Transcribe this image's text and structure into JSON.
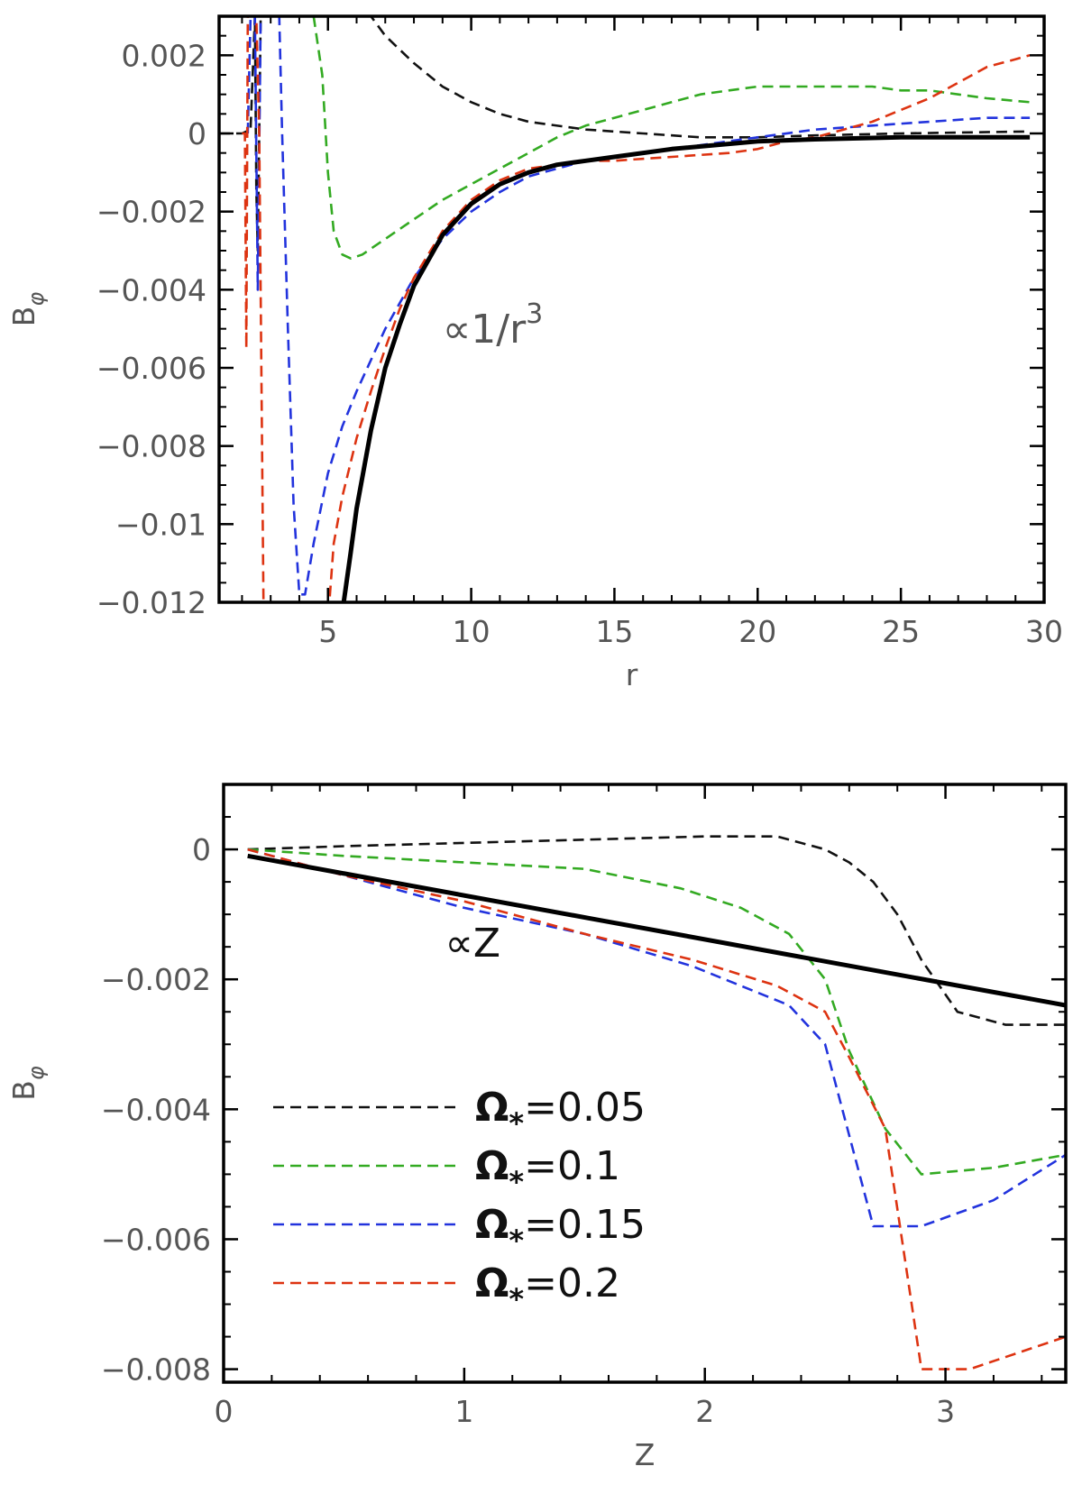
{
  "chart_data": [
    {
      "type": "line",
      "xlabel": "r",
      "ylabel_main": "B",
      "ylabel_sub": "φ",
      "xlim": [
        1.2,
        30
      ],
      "ylim": [
        -0.012,
        0.003
      ],
      "xticks": [
        5,
        10,
        15,
        20,
        25,
        30
      ],
      "xtick_labels": [
        "5",
        "10",
        "15",
        "20",
        "25",
        "30"
      ],
      "yticks": [
        0.002,
        0,
        -0.002,
        -0.004,
        -0.006,
        -0.008,
        -0.01,
        -0.012
      ],
      "ytick_labels": [
        "0.002",
        "0",
        "−0.002",
        "−0.004",
        "−0.006",
        "−0.008",
        "−0.01",
        "−0.012"
      ],
      "annotation": {
        "prefix": "∝1/r",
        "sup": "3",
        "x": 9.0,
        "y": -0.00535,
        "color": "#555555"
      },
      "series": [
        {
          "color": "#111111",
          "dash": "12,7",
          "points": [
            [
              1.2,
              0
            ],
            [
              2.0,
              0
            ],
            [
              2.3,
              0.0001
            ],
            [
              2.45,
              0.003
            ],
            [
              2.5,
              -0.0015
            ],
            [
              2.55,
              -0.003
            ],
            [
              2.65,
              0.003
            ],
            [
              6.5,
              0.003
            ],
            [
              7,
              0.0025
            ],
            [
              8,
              0.0018
            ],
            [
              9,
              0.0012
            ],
            [
              10,
              0.0008
            ],
            [
              11,
              0.0005
            ],
            [
              12,
              0.0003
            ],
            [
              14,
              0.0001
            ],
            [
              16,
              0.0
            ],
            [
              18,
              -0.0001
            ],
            [
              20,
              -0.0001
            ],
            [
              22,
              -5e-05
            ],
            [
              25,
              0.0
            ],
            [
              29.5,
              5e-05
            ]
          ]
        },
        {
          "color": "#33aa22",
          "dash": "12,7",
          "points": [
            [
              4.5,
              0.003
            ],
            [
              4.8,
              0.0015
            ],
            [
              5.0,
              -0.001
            ],
            [
              5.2,
              -0.0025
            ],
            [
              5.5,
              -0.0031
            ],
            [
              5.8,
              -0.0032
            ],
            [
              6.2,
              -0.0031
            ],
            [
              7,
              -0.0027
            ],
            [
              8,
              -0.0022
            ],
            [
              9,
              -0.0017
            ],
            [
              10,
              -0.0013
            ],
            [
              11,
              -0.0009
            ],
            [
              12,
              -0.0005
            ],
            [
              13,
              -0.0001
            ],
            [
              14,
              0.0002
            ],
            [
              15,
              0.0004
            ],
            [
              16,
              0.0006
            ],
            [
              17,
              0.0008
            ],
            [
              18,
              0.001
            ],
            [
              19,
              0.0011
            ],
            [
              20,
              0.0012
            ],
            [
              21,
              0.0012
            ],
            [
              22,
              0.0012
            ],
            [
              23,
              0.0012
            ],
            [
              24,
              0.0012
            ],
            [
              25,
              0.0011
            ],
            [
              26,
              0.0011
            ],
            [
              27,
              0.001
            ],
            [
              28,
              0.0009
            ],
            [
              29.5,
              0.0008
            ]
          ]
        },
        {
          "color": "#2233dd",
          "dash": "12,7",
          "points": [
            [
              2.2,
              0
            ],
            [
              2.3,
              0.003
            ],
            [
              2.45,
              0.003
            ],
            [
              2.55,
              -0.004
            ],
            [
              2.65,
              0.003
            ],
            [
              3.3,
              0.003
            ],
            [
              3.4,
              0.0
            ],
            [
              3.6,
              -0.005
            ],
            [
              3.8,
              -0.0095
            ],
            [
              4.0,
              -0.0118
            ],
            [
              4.2,
              -0.0118
            ],
            [
              4.5,
              -0.0105
            ],
            [
              5.0,
              -0.0087
            ],
            [
              5.5,
              -0.0075
            ],
            [
              6,
              -0.0066
            ],
            [
              6.5,
              -0.0058
            ],
            [
              7,
              -0.005
            ],
            [
              8,
              -0.0037
            ],
            [
              9,
              -0.0027
            ],
            [
              10,
              -0.002
            ],
            [
              11,
              -0.0015
            ],
            [
              12,
              -0.0011
            ],
            [
              13,
              -0.0009
            ],
            [
              14,
              -0.0007
            ],
            [
              15,
              -0.0006
            ],
            [
              16,
              -0.0005
            ],
            [
              18,
              -0.0003
            ],
            [
              20,
              -0.0001
            ],
            [
              22,
              0.0001
            ],
            [
              24,
              0.0002
            ],
            [
              26,
              0.0003
            ],
            [
              28,
              0.0004
            ],
            [
              29.5,
              0.0004
            ]
          ]
        },
        {
          "color": "#dd3311",
          "dash": "12,7",
          "points": [
            [
              2.0,
              0
            ],
            [
              2.1,
              0.0
            ],
            [
              2.15,
              -0.0055
            ],
            [
              2.2,
              0.003
            ],
            [
              2.5,
              0.003
            ],
            [
              2.6,
              0.0
            ],
            [
              2.75,
              -0.012
            ],
            [
              5.05,
              -0.012
            ],
            [
              5.2,
              -0.0105
            ],
            [
              5.5,
              -0.0093
            ],
            [
              6,
              -0.0078
            ],
            [
              6.5,
              -0.0066
            ],
            [
              7,
              -0.0055
            ],
            [
              7.5,
              -0.0045
            ],
            [
              8,
              -0.0037
            ],
            [
              9,
              -0.0025
            ],
            [
              10,
              -0.0017
            ],
            [
              11,
              -0.0012
            ],
            [
              12,
              -0.0009
            ],
            [
              13,
              -0.0008
            ],
            [
              14,
              -0.0007
            ],
            [
              15,
              -0.0007
            ],
            [
              17,
              -0.0006
            ],
            [
              19,
              -0.0005
            ],
            [
              20,
              -0.0004
            ],
            [
              21,
              -0.0002
            ],
            [
              22,
              -0.0001
            ],
            [
              23,
              0.0001
            ],
            [
              24,
              0.0003
            ],
            [
              25,
              0.0006
            ],
            [
              26,
              0.0009
            ],
            [
              27,
              0.0013
            ],
            [
              28,
              0.0017
            ],
            [
              29,
              0.0019
            ],
            [
              29.5,
              0.002
            ]
          ]
        },
        {
          "color": "#000000",
          "dash": "",
          "width": 5,
          "points": [
            [
              5.55,
              -0.012
            ],
            [
              5.8,
              -0.0107
            ],
            [
              6,
              -0.0096
            ],
            [
              6.5,
              -0.0076
            ],
            [
              7,
              -0.006
            ],
            [
              7.5,
              -0.0049
            ],
            [
              8,
              -0.0039
            ],
            [
              9,
              -0.0026
            ],
            [
              10,
              -0.0018
            ],
            [
              11,
              -0.0013
            ],
            [
              12,
              -0.001
            ],
            [
              13,
              -0.0008
            ],
            [
              14,
              -0.0007
            ],
            [
              15,
              -0.0006
            ],
            [
              17,
              -0.0004
            ],
            [
              20,
              -0.0002
            ],
            [
              22,
              -0.00015
            ],
            [
              25,
              -0.0001
            ],
            [
              29.5,
              -0.0001
            ]
          ]
        }
      ]
    },
    {
      "type": "line",
      "xlabel": "Z",
      "ylabel_main": "B",
      "ylabel_sub": "φ",
      "xlim": [
        0,
        3.5
      ],
      "ylim": [
        -0.0082,
        0.001
      ],
      "xticks": [
        0,
        1,
        2,
        3
      ],
      "xtick_labels": [
        "0",
        "1",
        "2",
        "3"
      ],
      "yticks": [
        0,
        -0.002,
        -0.004,
        -0.006,
        -0.008
      ],
      "ytick_labels": [
        "0",
        "−0.002",
        "−0.004",
        "−0.006",
        "−0.008"
      ],
      "annotation": {
        "prefix": "∝Z",
        "sup": "",
        "x": 0.92,
        "y": -0.00165,
        "color": "#111111"
      },
      "series": [
        {
          "name": "=0.05",
          "color": "#111111",
          "dash": "12,7",
          "points": [
            [
              0.1,
              0
            ],
            [
              0.5,
              5e-05
            ],
            [
              1.0,
              0.0001
            ],
            [
              1.5,
              0.00015
            ],
            [
              2.0,
              0.0002
            ],
            [
              2.3,
              0.0002
            ],
            [
              2.5,
              0.0
            ],
            [
              2.6,
              -0.0002
            ],
            [
              2.7,
              -0.0005
            ],
            [
              2.8,
              -0.001
            ],
            [
              2.9,
              -0.0017
            ],
            [
              3.05,
              -0.0025
            ],
            [
              3.25,
              -0.0027
            ],
            [
              3.5,
              -0.0027
            ]
          ]
        },
        {
          "name": "=0.1",
          "color": "#33aa22",
          "dash": "12,7",
          "points": [
            [
              0.1,
              0
            ],
            [
              0.5,
              -0.0001
            ],
            [
              1.0,
              -0.0002
            ],
            [
              1.5,
              -0.0003
            ],
            [
              1.9,
              -0.0006
            ],
            [
              2.15,
              -0.0009
            ],
            [
              2.35,
              -0.0013
            ],
            [
              2.5,
              -0.002
            ],
            [
              2.6,
              -0.0031
            ],
            [
              2.75,
              -0.0043
            ],
            [
              2.9,
              -0.005
            ],
            [
              3.2,
              -0.0049
            ],
            [
              3.5,
              -0.0047
            ]
          ]
        },
        {
          "name": "=0.15",
          "color": "#2233dd",
          "dash": "12,7",
          "points": [
            [
              0.1,
              0
            ],
            [
              0.5,
              -0.0004
            ],
            [
              1.0,
              -0.0009
            ],
            [
              1.5,
              -0.0013
            ],
            [
              1.95,
              -0.0018
            ],
            [
              2.35,
              -0.0024
            ],
            [
              2.5,
              -0.003
            ],
            [
              2.7,
              -0.0058
            ],
            [
              2.9,
              -0.0058
            ],
            [
              3.2,
              -0.0054
            ],
            [
              3.5,
              -0.0047
            ]
          ]
        },
        {
          "name": "=0.2",
          "color": "#dd3311",
          "dash": "12,7",
          "points": [
            [
              0.1,
              0
            ],
            [
              0.5,
              -0.0004
            ],
            [
              1.0,
              -0.0008
            ],
            [
              1.5,
              -0.0013
            ],
            [
              1.95,
              -0.0017
            ],
            [
              2.3,
              -0.0021
            ],
            [
              2.5,
              -0.0025
            ],
            [
              2.6,
              -0.0032
            ],
            [
              2.75,
              -0.0043
            ],
            [
              2.9,
              -0.008
            ],
            [
              3.1,
              -0.008
            ],
            [
              3.5,
              -0.0075
            ]
          ]
        },
        {
          "color": "#000000",
          "dash": "",
          "width": 5,
          "points": [
            [
              0.1,
              -0.0001
            ],
            [
              3.5,
              -0.0024
            ]
          ]
        }
      ],
      "legend": {
        "placement": "bottom-left",
        "symbol": "Ω",
        "sub": "*"
      }
    }
  ]
}
